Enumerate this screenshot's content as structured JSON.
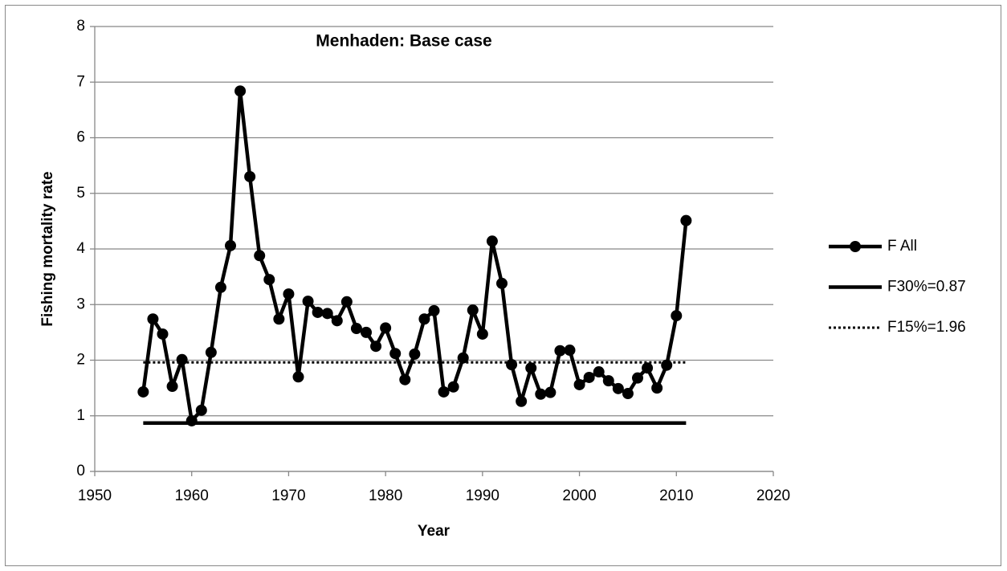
{
  "chart_data": {
    "type": "line",
    "title": "Menhaden: Base case",
    "x_label": "Year",
    "y_label": "Fishing mortality rate",
    "xlim": [
      1950,
      2020
    ],
    "xticks": [
      1950,
      1960,
      1970,
      1980,
      1990,
      2000,
      2010,
      2020
    ],
    "ylim": [
      0,
      8
    ],
    "yticks": [
      0,
      1,
      2,
      3,
      4,
      5,
      6,
      7,
      8
    ],
    "grid": true,
    "legend": "right",
    "series": [
      {
        "name": "F All",
        "color": "#000000",
        "marker": true,
        "dash": "solid",
        "x": [
          1955,
          1956,
          1957,
          1958,
          1959,
          1960,
          1961,
          1962,
          1963,
          1964,
          1965,
          1966,
          1967,
          1968,
          1969,
          1970,
          1971,
          1972,
          1973,
          1974,
          1975,
          1976,
          1977,
          1978,
          1979,
          1980,
          1981,
          1982,
          1983,
          1984,
          1985,
          1986,
          1987,
          1988,
          1989,
          1990,
          1991,
          1992,
          1993,
          1994,
          1995,
          1996,
          1997,
          1998,
          1999,
          2000,
          2001,
          2002,
          2003,
          2004,
          2005,
          2006,
          2007,
          2008,
          2009,
          2010,
          2011
        ],
        "values": [
          1.43,
          2.74,
          2.47,
          1.53,
          2.01,
          0.91,
          1.1,
          2.14,
          3.31,
          4.06,
          6.84,
          5.3,
          3.88,
          3.45,
          2.74,
          3.19,
          1.7,
          3.06,
          2.86,
          2.84,
          2.71,
          3.05,
          2.57,
          2.5,
          2.25,
          2.58,
          2.12,
          1.65,
          2.11,
          2.74,
          2.89,
          1.43,
          1.52,
          2.04,
          2.9,
          2.47,
          4.14,
          3.38,
          1.92,
          1.26,
          1.86,
          1.39,
          1.42,
          2.17,
          2.18,
          1.56,
          1.69,
          1.79,
          1.63,
          1.49,
          1.4,
          1.68,
          1.86,
          1.5,
          1.91,
          2.8,
          4.51
        ]
      },
      {
        "name": "F30%=0.87",
        "color": "#000000",
        "marker": false,
        "dash": "solid",
        "x": [
          1955,
          2011
        ],
        "values": [
          0.87,
          0.87
        ]
      },
      {
        "name": "F15%=1.96",
        "color": "#000000",
        "marker": false,
        "dash": "dotted",
        "x": [
          1955,
          2011
        ],
        "values": [
          1.96,
          1.96
        ]
      }
    ]
  }
}
